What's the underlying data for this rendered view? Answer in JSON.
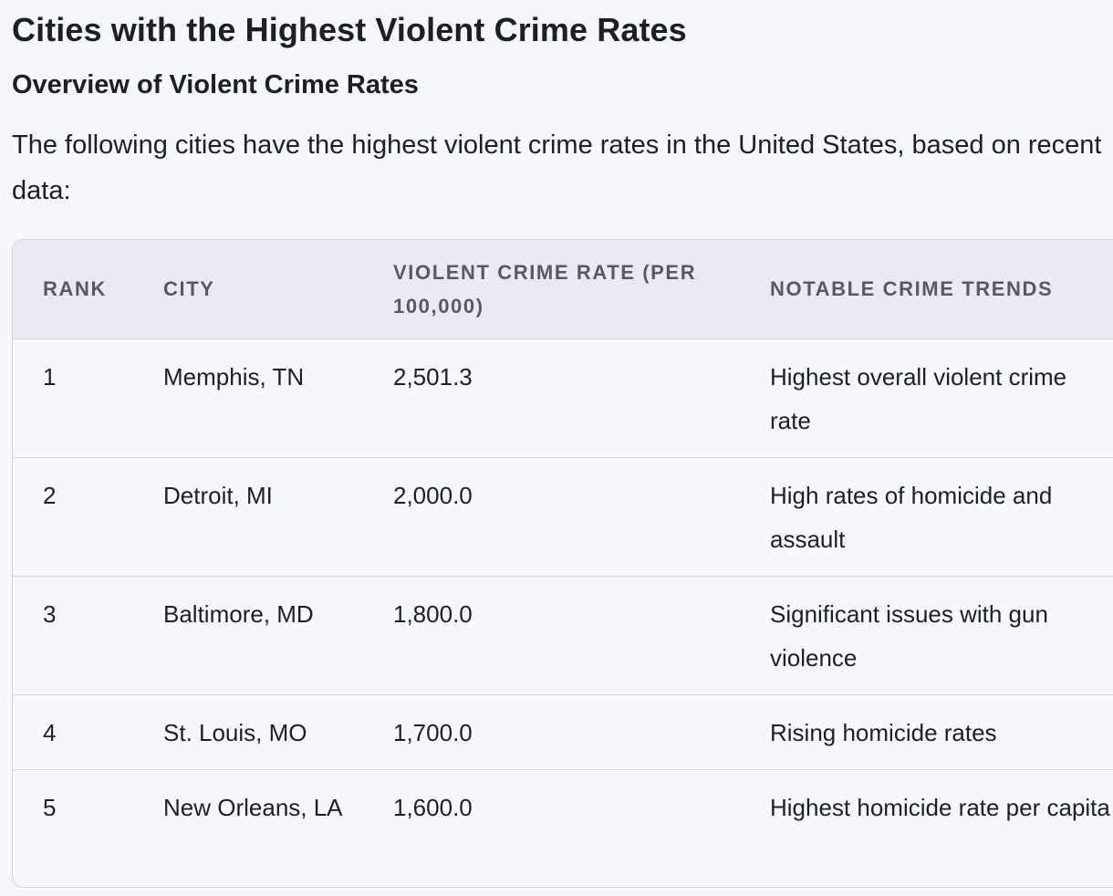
{
  "title": "Cities with the Highest Violent Crime Rates",
  "subtitle": "Overview of Violent Crime Rates",
  "intro": "The following cities have the highest violent crime rates in the United States, based on recent data:",
  "table": {
    "headers": {
      "rank": "RANK",
      "city": "CITY",
      "rate": "VIOLENT CRIME RATE (PER 100,000)",
      "trend": "NOTABLE CRIME TRENDS"
    },
    "rows": [
      {
        "rank": "1",
        "city": "Memphis, TN",
        "rate": "2,501.3",
        "trend": "Highest overall violent crime rate"
      },
      {
        "rank": "2",
        "city": "Detroit, MI",
        "rate": "2,000.0",
        "trend": "High rates of homicide and assault"
      },
      {
        "rank": "3",
        "city": "Baltimore, MD",
        "rate": "1,800.0",
        "trend": "Significant issues with gun violence"
      },
      {
        "rank": "4",
        "city": "St. Louis, MO",
        "rate": "1,700.0",
        "trend": "Rising homicide rates"
      },
      {
        "rank": "5",
        "city": "New Orleans, LA",
        "rate": "1,600.0",
        "trend": "Highest homicide rate per capita"
      }
    ]
  }
}
